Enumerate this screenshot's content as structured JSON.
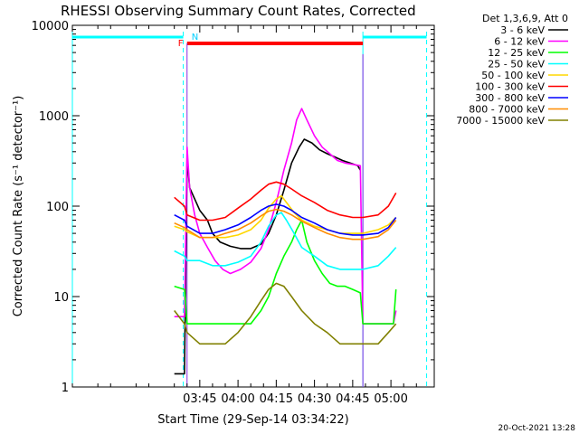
{
  "chart_data": {
    "type": "line",
    "title": "RHESSI Observing Summary Count Rates, Corrected",
    "xlabel": "Start Time (29-Sep-14 03:34:22)",
    "ylabel": "Corrected Count Rate (s⁻¹ detector⁻¹)",
    "yscale": "log",
    "ylim": [
      1,
      10000
    ],
    "xlim_minutes": [
      -50,
      92
    ],
    "y_ticks": [
      "1",
      "10",
      "100",
      "1000",
      "10000"
    ],
    "x_ticks": [
      {
        "label": "03:45",
        "minute": 0
      },
      {
        "label": "04:00",
        "minute": 15
      },
      {
        "label": "04:15",
        "minute": 30
      },
      {
        "label": "04:30",
        "minute": 45
      },
      {
        "label": "04:45",
        "minute": 60
      },
      {
        "label": "05:00",
        "minute": 75
      }
    ],
    "legend_header": "Det 1,3,6,9, Att 0",
    "legend_position": "right-outside",
    "series": [
      {
        "name": "3 - 6 keV",
        "color": "#000000",
        "points": [
          [
            -10,
            1.4
          ],
          [
            -6,
            1.4
          ],
          [
            -5,
            350
          ],
          [
            -4,
            160
          ],
          [
            -2,
            120
          ],
          [
            0,
            90
          ],
          [
            3,
            70
          ],
          [
            5,
            50
          ],
          [
            8,
            40
          ],
          [
            12,
            36
          ],
          [
            16,
            34
          ],
          [
            20,
            34
          ],
          [
            24,
            38
          ],
          [
            27,
            50
          ],
          [
            30,
            80
          ],
          [
            33,
            150
          ],
          [
            36,
            300
          ],
          [
            39,
            450
          ],
          [
            41,
            550
          ],
          [
            44,
            500
          ],
          [
            47,
            420
          ],
          [
            50,
            380
          ],
          [
            53,
            350
          ],
          [
            56,
            320
          ],
          [
            59,
            300
          ],
          [
            62,
            280
          ],
          [
            63,
            250
          ]
        ]
      },
      {
        "name": "6 - 12 keV",
        "color": "#ff00ff",
        "points": [
          [
            -10,
            6
          ],
          [
            -6,
            6
          ],
          [
            -5,
            450
          ],
          [
            -4,
            160
          ],
          [
            -2,
            80
          ],
          [
            0,
            50
          ],
          [
            3,
            35
          ],
          [
            6,
            25
          ],
          [
            9,
            20
          ],
          [
            12,
            18
          ],
          [
            16,
            20
          ],
          [
            20,
            24
          ],
          [
            24,
            34
          ],
          [
            27,
            55
          ],
          [
            30,
            110
          ],
          [
            33,
            250
          ],
          [
            36,
            500
          ],
          [
            38,
            900
          ],
          [
            40,
            1200
          ],
          [
            42,
            900
          ],
          [
            45,
            600
          ],
          [
            48,
            450
          ],
          [
            51,
            380
          ],
          [
            54,
            320
          ],
          [
            57,
            300
          ],
          [
            60,
            290
          ],
          [
            63,
            280
          ],
          [
            64,
            5
          ],
          [
            76,
            5
          ],
          [
            77,
            7
          ]
        ]
      },
      {
        "name": "12 - 25 keV",
        "color": "#00ff00",
        "points": [
          [
            -10,
            13
          ],
          [
            -6,
            12
          ],
          [
            -5,
            5
          ],
          [
            0,
            5
          ],
          [
            10,
            5
          ],
          [
            16,
            5
          ],
          [
            20,
            5
          ],
          [
            24,
            7
          ],
          [
            27,
            10
          ],
          [
            30,
            18
          ],
          [
            33,
            28
          ],
          [
            36,
            40
          ],
          [
            38,
            55
          ],
          [
            40,
            70
          ],
          [
            42,
            40
          ],
          [
            45,
            25
          ],
          [
            48,
            18
          ],
          [
            51,
            14
          ],
          [
            54,
            13
          ],
          [
            57,
            13
          ],
          [
            60,
            12
          ],
          [
            63,
            11
          ],
          [
            64,
            5
          ],
          [
            76,
            5
          ],
          [
            77,
            12
          ]
        ]
      },
      {
        "name": "25 - 50 keV",
        "color": "#00ffff",
        "points": [
          [
            -10,
            32
          ],
          [
            -6,
            28
          ],
          [
            -5,
            25
          ],
          [
            0,
            25
          ],
          [
            5,
            22
          ],
          [
            10,
            22
          ],
          [
            15,
            24
          ],
          [
            20,
            28
          ],
          [
            24,
            40
          ],
          [
            27,
            60
          ],
          [
            30,
            80
          ],
          [
            32,
            85
          ],
          [
            34,
            70
          ],
          [
            37,
            50
          ],
          [
            40,
            35
          ],
          [
            45,
            28
          ],
          [
            50,
            22
          ],
          [
            55,
            20
          ],
          [
            60,
            20
          ],
          [
            64,
            20
          ],
          [
            70,
            22
          ],
          [
            74,
            28
          ],
          [
            77,
            35
          ]
        ]
      },
      {
        "name": "50 - 100 keV",
        "color": "#ffd700",
        "points": [
          [
            -10,
            60
          ],
          [
            -6,
            55
          ],
          [
            -5,
            52
          ],
          [
            0,
            45
          ],
          [
            5,
            45
          ],
          [
            10,
            45
          ],
          [
            15,
            48
          ],
          [
            20,
            55
          ],
          [
            24,
            70
          ],
          [
            27,
            95
          ],
          [
            30,
            120
          ],
          [
            32,
            130
          ],
          [
            34,
            110
          ],
          [
            37,
            85
          ],
          [
            40,
            70
          ],
          [
            45,
            60
          ],
          [
            50,
            55
          ],
          [
            55,
            50
          ],
          [
            60,
            50
          ],
          [
            64,
            50
          ],
          [
            70,
            55
          ],
          [
            74,
            62
          ],
          [
            77,
            75
          ]
        ]
      },
      {
        "name": "100 - 300 keV",
        "color": "#ff0000",
        "points": [
          [
            -10,
            125
          ],
          [
            -6,
            100
          ],
          [
            -5,
            80
          ],
          [
            0,
            70
          ],
          [
            5,
            70
          ],
          [
            10,
            75
          ],
          [
            15,
            95
          ],
          [
            20,
            120
          ],
          [
            24,
            150
          ],
          [
            27,
            175
          ],
          [
            30,
            185
          ],
          [
            33,
            175
          ],
          [
            36,
            155
          ],
          [
            40,
            130
          ],
          [
            45,
            110
          ],
          [
            50,
            90
          ],
          [
            55,
            80
          ],
          [
            60,
            75
          ],
          [
            64,
            75
          ],
          [
            70,
            80
          ],
          [
            74,
            100
          ],
          [
            77,
            140
          ]
        ]
      },
      {
        "name": "300 - 800 keV",
        "color": "#0000ff",
        "points": [
          [
            -10,
            80
          ],
          [
            -6,
            70
          ],
          [
            -5,
            60
          ],
          [
            0,
            50
          ],
          [
            5,
            50
          ],
          [
            10,
            55
          ],
          [
            15,
            62
          ],
          [
            20,
            75
          ],
          [
            24,
            90
          ],
          [
            27,
            100
          ],
          [
            30,
            105
          ],
          [
            33,
            100
          ],
          [
            36,
            90
          ],
          [
            40,
            75
          ],
          [
            45,
            65
          ],
          [
            50,
            55
          ],
          [
            55,
            50
          ],
          [
            60,
            48
          ],
          [
            64,
            48
          ],
          [
            70,
            50
          ],
          [
            74,
            58
          ],
          [
            77,
            75
          ]
        ]
      },
      {
        "name": "800 - 7000 keV",
        "color": "#ff8c00",
        "points": [
          [
            -10,
            65
          ],
          [
            -6,
            58
          ],
          [
            -5,
            55
          ],
          [
            0,
            45
          ],
          [
            5,
            45
          ],
          [
            10,
            50
          ],
          [
            15,
            55
          ],
          [
            20,
            65
          ],
          [
            24,
            78
          ],
          [
            27,
            88
          ],
          [
            30,
            92
          ],
          [
            33,
            88
          ],
          [
            36,
            80
          ],
          [
            40,
            68
          ],
          [
            45,
            58
          ],
          [
            50,
            50
          ],
          [
            55,
            45
          ],
          [
            60,
            43
          ],
          [
            64,
            43
          ],
          [
            70,
            46
          ],
          [
            74,
            55
          ],
          [
            77,
            70
          ]
        ]
      },
      {
        "name": "7000 - 15000 keV",
        "color": "#808000",
        "points": [
          [
            -10,
            7
          ],
          [
            -6,
            5
          ],
          [
            -5,
            4
          ],
          [
            0,
            3
          ],
          [
            10,
            3
          ],
          [
            15,
            4
          ],
          [
            20,
            6
          ],
          [
            24,
            9
          ],
          [
            27,
            12
          ],
          [
            30,
            14
          ],
          [
            33,
            13
          ],
          [
            36,
            10
          ],
          [
            40,
            7
          ],
          [
            45,
            5
          ],
          [
            50,
            4
          ],
          [
            55,
            3
          ],
          [
            60,
            3
          ],
          [
            64,
            3
          ],
          [
            70,
            3
          ],
          [
            74,
            4
          ],
          [
            77,
            5
          ]
        ]
      }
    ],
    "annotations": [
      {
        "label": "F",
        "color": "#ff0000"
      },
      {
        "label": "N",
        "color": "#00cfff"
      }
    ],
    "timestamp": "20-Oct-2021 13:28"
  }
}
